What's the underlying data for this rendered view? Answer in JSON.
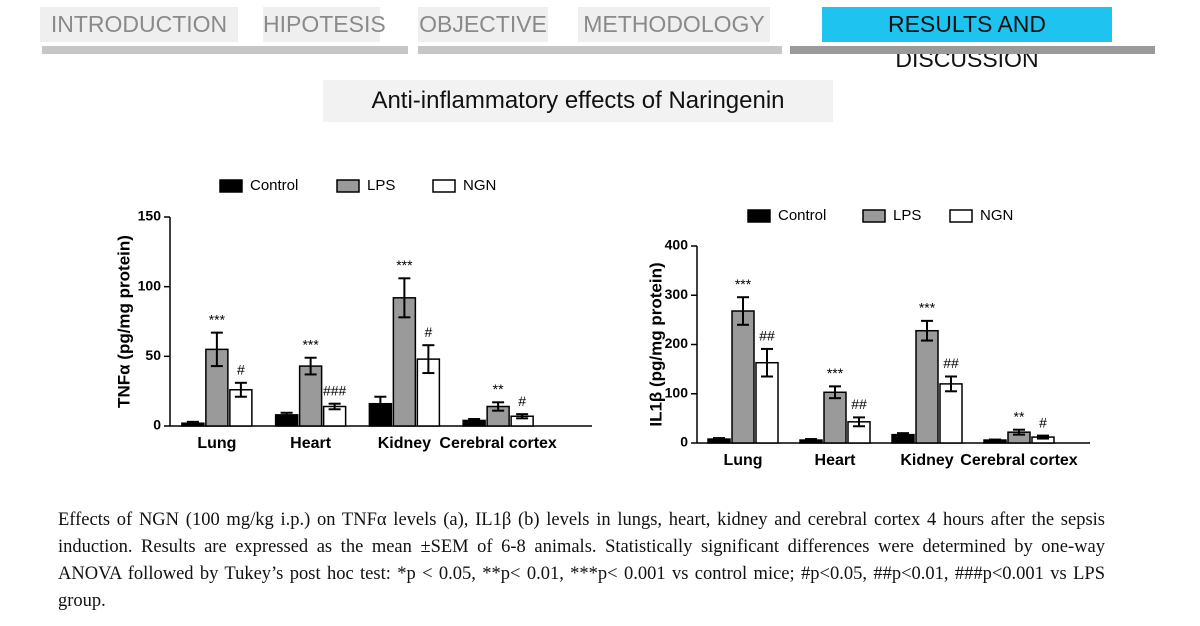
{
  "nav": [
    "INTRODUCTION",
    "HIPOTESIS",
    "OBJECTIVE",
    "METHODOLOGY",
    "RESULTS AND DISCUSSION"
  ],
  "slide_title": "Anti-inflammatory effects of Naringenin",
  "chart_data": [
    {
      "type": "bar",
      "y_label": "TNFα (pg/mg protein)",
      "categories": [
        "Lung",
        "Heart",
        "Kidney",
        "Cerebral cortex"
      ],
      "ylim": [
        0,
        150
      ],
      "yticks": [
        0,
        50,
        100,
        150
      ],
      "series": [
        {
          "name": "Control",
          "color": "#000000",
          "values": [
            2,
            8,
            16,
            4
          ],
          "errors": [
            1,
            1.5,
            5,
            1
          ]
        },
        {
          "name": "LPS",
          "color": "#9a9a9a",
          "values": [
            55,
            43,
            92,
            14
          ],
          "errors": [
            12,
            6,
            14,
            3
          ],
          "annotations": [
            "***",
            "***",
            "***",
            "**"
          ]
        },
        {
          "name": "NGN",
          "color": "#ffffff",
          "values": [
            26,
            14,
            48,
            7
          ],
          "errors": [
            5,
            2,
            10,
            1.5
          ],
          "annotations": [
            "#",
            "###",
            "#",
            "#"
          ]
        }
      ]
    },
    {
      "type": "bar",
      "y_label": "IL1β (pg/mg protein)",
      "categories": [
        "Lung",
        "Heart",
        "Kidney",
        "Cerebral cortex"
      ],
      "ylim": [
        0,
        400
      ],
      "yticks": [
        0,
        100,
        200,
        300,
        400
      ],
      "series": [
        {
          "name": "Control",
          "color": "#000000",
          "values": [
            8,
            6,
            17,
            6
          ],
          "errors": [
            2,
            2,
            3,
            1
          ]
        },
        {
          "name": "LPS",
          "color": "#9a9a9a",
          "values": [
            268,
            103,
            228,
            22
          ],
          "errors": [
            28,
            12,
            20,
            5
          ],
          "annotations": [
            "***",
            "***",
            "***",
            "**"
          ]
        },
        {
          "name": "NGN",
          "color": "#ffffff",
          "values": [
            163,
            43,
            120,
            12
          ],
          "errors": [
            28,
            9,
            15,
            3
          ],
          "annotations": [
            "##",
            "##",
            "##",
            "#"
          ]
        }
      ]
    }
  ],
  "caption": "Effects of NGN (100 mg/kg i.p.) on TNFα levels (a), IL1β (b) levels in lungs, heart, kidney and cerebral cortex 4 hours after the sepsis induction. Results are expressed as the mean ±SEM of 6-8 animals. Statistically significant differences were determined by one-way ANOVA followed by Tukey’s post hoc test: *p < 0.05, **p< 0.01, ***p< 0.001 vs control mice; #p<0.05, ##p<0.01, ###p<0.001 vs LPS group."
}
